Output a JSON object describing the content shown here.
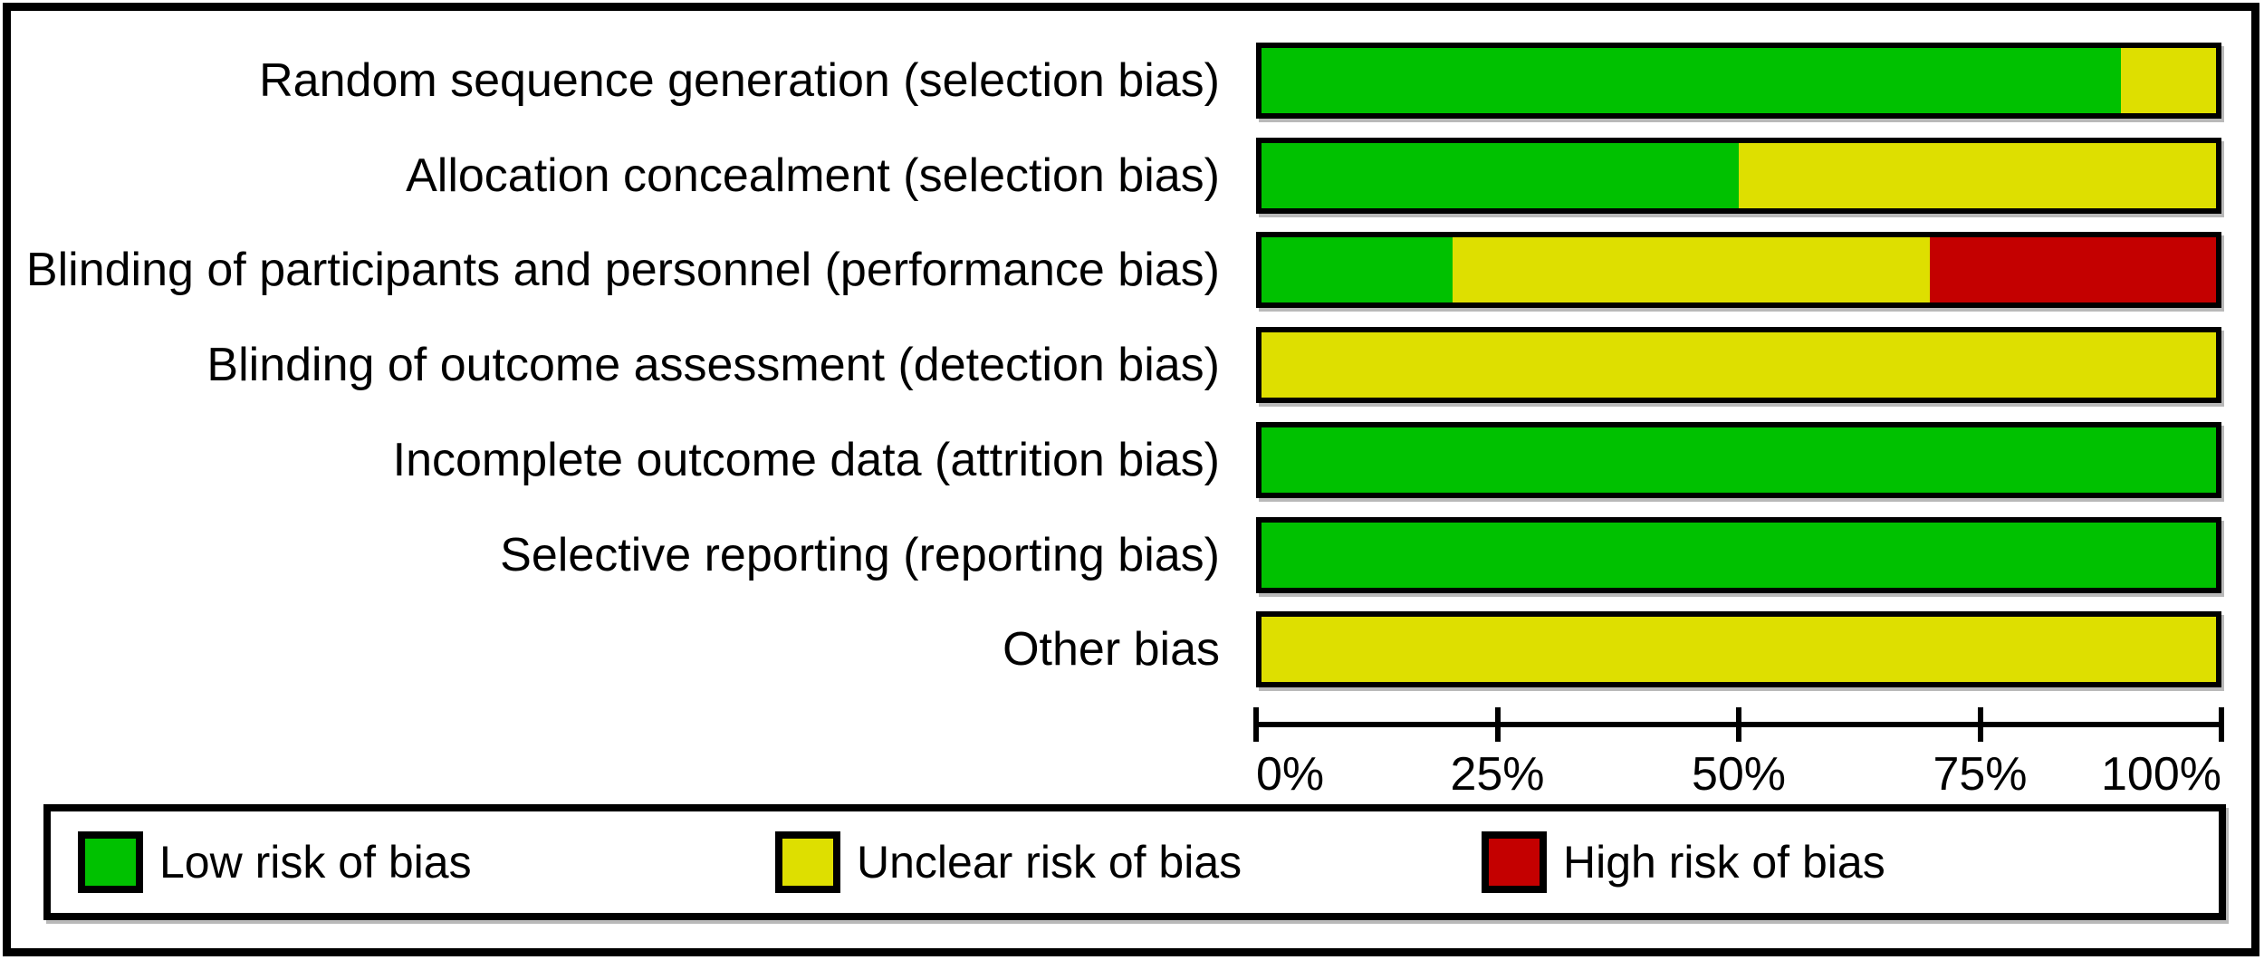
{
  "figure": {
    "kind": "risk-of-bias-graph"
  },
  "chart_data": {
    "type": "bar",
    "orientation": "horizontal",
    "stacked": true,
    "units": "percent",
    "title": "",
    "xlabel": "",
    "ylabel": "",
    "categories": [
      "Random sequence generation (selection bias)",
      "Allocation concealment (selection bias)",
      "Blinding of participants and personnel (performance bias)",
      "Blinding of outcome assessment (detection bias)",
      "Incomplete outcome data (attrition bias)",
      "Selective reporting (reporting bias)",
      "Other bias"
    ],
    "series": [
      {
        "name": "Low risk of bias",
        "color": "#00c100",
        "values": [
          90,
          50,
          20,
          0,
          100,
          100,
          0
        ]
      },
      {
        "name": "Unclear risk of bias",
        "color": "#dedf00",
        "values": [
          10,
          50,
          50,
          100,
          0,
          0,
          100
        ]
      },
      {
        "name": "High risk of bias",
        "color": "#c40000",
        "values": [
          0,
          0,
          30,
          0,
          0,
          0,
          0
        ]
      }
    ],
    "x_axis": {
      "range": [
        0,
        100
      ],
      "tick_values": [
        0,
        25,
        50,
        75,
        100
      ],
      "tick_labels": [
        "0%",
        "25%",
        "50%",
        "75%",
        "100%"
      ]
    },
    "legend": {
      "position": "bottom",
      "entries": [
        "Low risk of bias",
        "Unclear risk of bias",
        "High risk of bias"
      ]
    },
    "layout": {
      "row_top_start": 47,
      "row_pitch": 104.7,
      "legend_entry_offsets": [
        30,
        800,
        1580
      ]
    }
  }
}
